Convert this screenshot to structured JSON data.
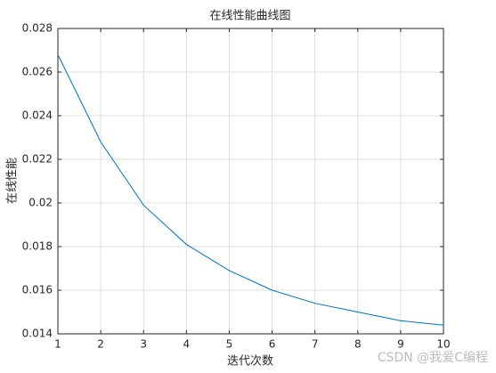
{
  "chart_data": {
    "type": "line",
    "title": "在线性能曲线图",
    "x_label": "迭代次数",
    "y_label": "在线性能",
    "x": [
      1,
      2,
      3,
      4,
      5,
      6,
      7,
      8,
      9,
      10
    ],
    "values": [
      0.0268,
      0.0228,
      0.0199,
      0.0181,
      0.0169,
      0.016,
      0.0154,
      0.015,
      0.0146,
      0.0144
    ],
    "color": "#0072bd",
    "xlim": [
      1,
      10
    ],
    "xticks": [
      1,
      2,
      3,
      4,
      5,
      6,
      7,
      8,
      9,
      10
    ],
    "ylim": [
      0.014,
      0.028
    ],
    "yticks": [
      0.014,
      0.016,
      0.018,
      0.02,
      0.022,
      0.024,
      0.026,
      0.028
    ],
    "grid": true,
    "watermark": "CSDN @我爱C编程"
  }
}
